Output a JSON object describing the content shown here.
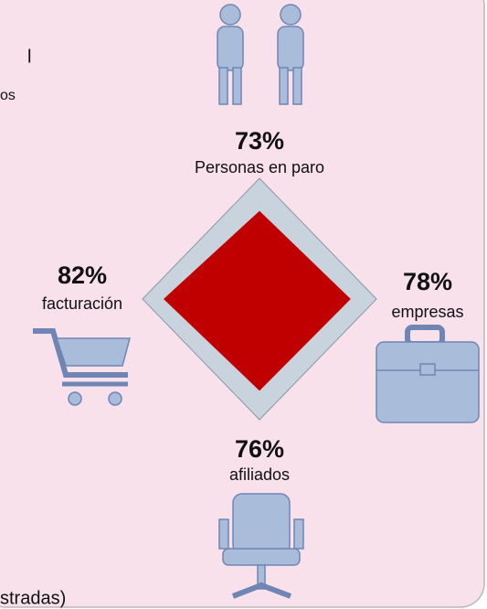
{
  "chart_data": {
    "type": "radar",
    "categories": [
      "Personas en paro",
      "empresas",
      "afiliados",
      "facturación"
    ],
    "values": [
      73,
      78,
      76,
      82
    ],
    "value_labels": [
      "73%",
      "78%",
      "76%",
      "82%"
    ],
    "rlim": [
      0,
      100
    ],
    "color": "#c00000",
    "frame_color": "#c9d3dd",
    "annotations": [
      "l",
      "os",
      "stradas)"
    ]
  }
}
